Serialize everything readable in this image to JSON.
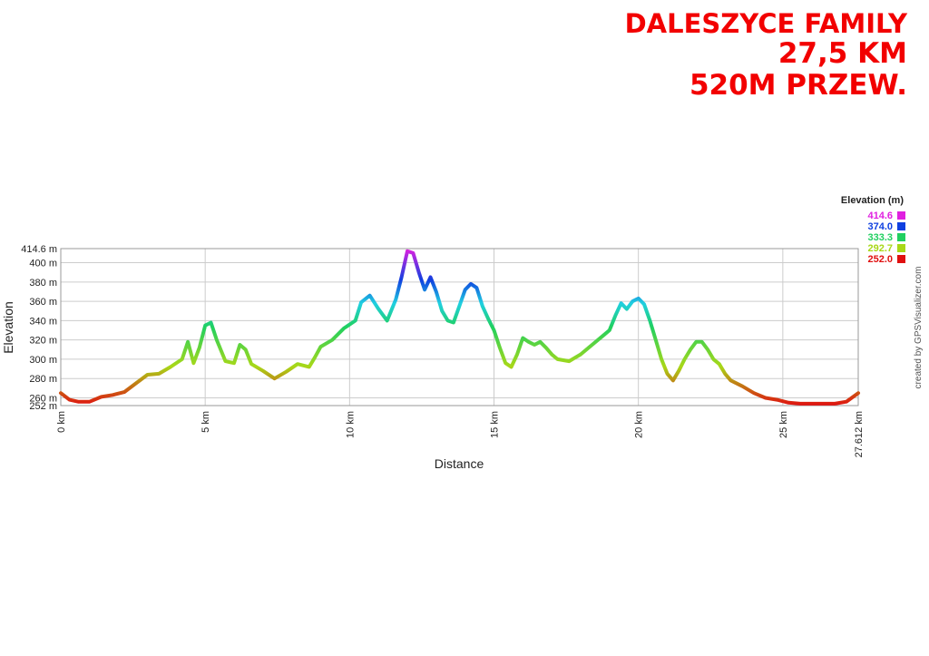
{
  "header": {
    "line1": "DALESZYCE FAMILY",
    "line2": "27,5 KM",
    "line3": "520M PRZEW."
  },
  "credit": "created by GPSVisualizer.com",
  "colors": {
    "title": "#f20000",
    "grid": "#cccccc",
    "axis": "#999999"
  },
  "chart_data": {
    "type": "line",
    "title": "",
    "xlabel": "Distance",
    "ylabel": "Elevation",
    "xlim": [
      0,
      27.612
    ],
    "ylim": [
      252,
      414.6
    ],
    "grid": true,
    "x_ticks": [
      {
        "value": 0,
        "label": "0 km"
      },
      {
        "value": 5,
        "label": "5 km"
      },
      {
        "value": 10,
        "label": "10 km"
      },
      {
        "value": 15,
        "label": "15 km"
      },
      {
        "value": 20,
        "label": "20 km"
      },
      {
        "value": 25,
        "label": "25 km"
      },
      {
        "value": 27.612,
        "label": "27.612 km"
      }
    ],
    "y_ticks": [
      {
        "value": 252,
        "label": "252 m"
      },
      {
        "value": 260,
        "label": "260 m"
      },
      {
        "value": 280,
        "label": "280 m"
      },
      {
        "value": 300,
        "label": "300 m"
      },
      {
        "value": 320,
        "label": "320 m"
      },
      {
        "value": 340,
        "label": "340 m"
      },
      {
        "value": 360,
        "label": "360 m"
      },
      {
        "value": 380,
        "label": "380 m"
      },
      {
        "value": 400,
        "label": "400 m"
      },
      {
        "value": 414.6,
        "label": "414.6 m"
      }
    ],
    "legend": {
      "title": "Elevation (m)",
      "placement": "top-right",
      "entries": [
        {
          "label": "414.6",
          "color": "#e020e0"
        },
        {
          "label": "374.0",
          "color": "#1040e0"
        },
        {
          "label": "333.3",
          "color": "#20d060"
        },
        {
          "label": "292.7",
          "color": "#a8d818"
        },
        {
          "label": "252.0",
          "color": "#e01010"
        }
      ]
    },
    "series": [
      {
        "x": [
          0,
          0.3,
          0.6,
          1.0,
          1.4,
          1.8,
          2.2,
          2.6,
          3.0,
          3.4,
          3.8,
          4.2,
          4.4,
          4.6,
          4.8,
          5.0,
          5.2,
          5.4,
          5.7,
          6.0,
          6.2,
          6.4,
          6.6,
          7.0,
          7.4,
          7.8,
          8.2,
          8.6,
          8.8,
          9.0,
          9.4,
          9.8,
          10.2,
          10.4,
          10.7,
          11.0,
          11.3,
          11.6,
          11.8,
          12.0,
          12.2,
          12.4,
          12.6,
          12.8,
          13.0,
          13.2,
          13.4,
          13.6,
          13.8,
          14.0,
          14.2,
          14.4,
          14.6,
          14.8,
          15.0,
          15.2,
          15.4,
          15.6,
          15.8,
          16.0,
          16.2,
          16.4,
          16.6,
          16.8,
          17.0,
          17.2,
          17.6,
          18.0,
          18.4,
          18.8,
          19.0,
          19.2,
          19.4,
          19.6,
          19.8,
          20.0,
          20.2,
          20.4,
          20.6,
          20.8,
          21.0,
          21.2,
          21.4,
          21.6,
          21.8,
          22.0,
          22.2,
          22.4,
          22.6,
          22.8,
          23.0,
          23.2,
          23.6,
          24.0,
          24.4,
          24.8,
          25.2,
          25.6,
          26.0,
          26.4,
          26.8,
          27.2,
          27.612
        ],
        "y": [
          265,
          258,
          256,
          256,
          261,
          263,
          266,
          275,
          284,
          285,
          292,
          300,
          318,
          296,
          312,
          335,
          338,
          320,
          298,
          296,
          315,
          310,
          295,
          288,
          280,
          287,
          295,
          292,
          302,
          313,
          320,
          332,
          340,
          359,
          366,
          352,
          340,
          362,
          385,
          412,
          410,
          390,
          372,
          385,
          370,
          350,
          340,
          338,
          355,
          372,
          378,
          374,
          355,
          342,
          330,
          312,
          296,
          292,
          305,
          322,
          318,
          315,
          318,
          312,
          305,
          300,
          298,
          305,
          315,
          325,
          330,
          345,
          358,
          352,
          360,
          363,
          357,
          340,
          320,
          300,
          285,
          278,
          288,
          300,
          310,
          318,
          318,
          310,
          300,
          295,
          285,
          278,
          272,
          265,
          260,
          258,
          255,
          254,
          254,
          254,
          254,
          256,
          265
        ]
      }
    ]
  }
}
